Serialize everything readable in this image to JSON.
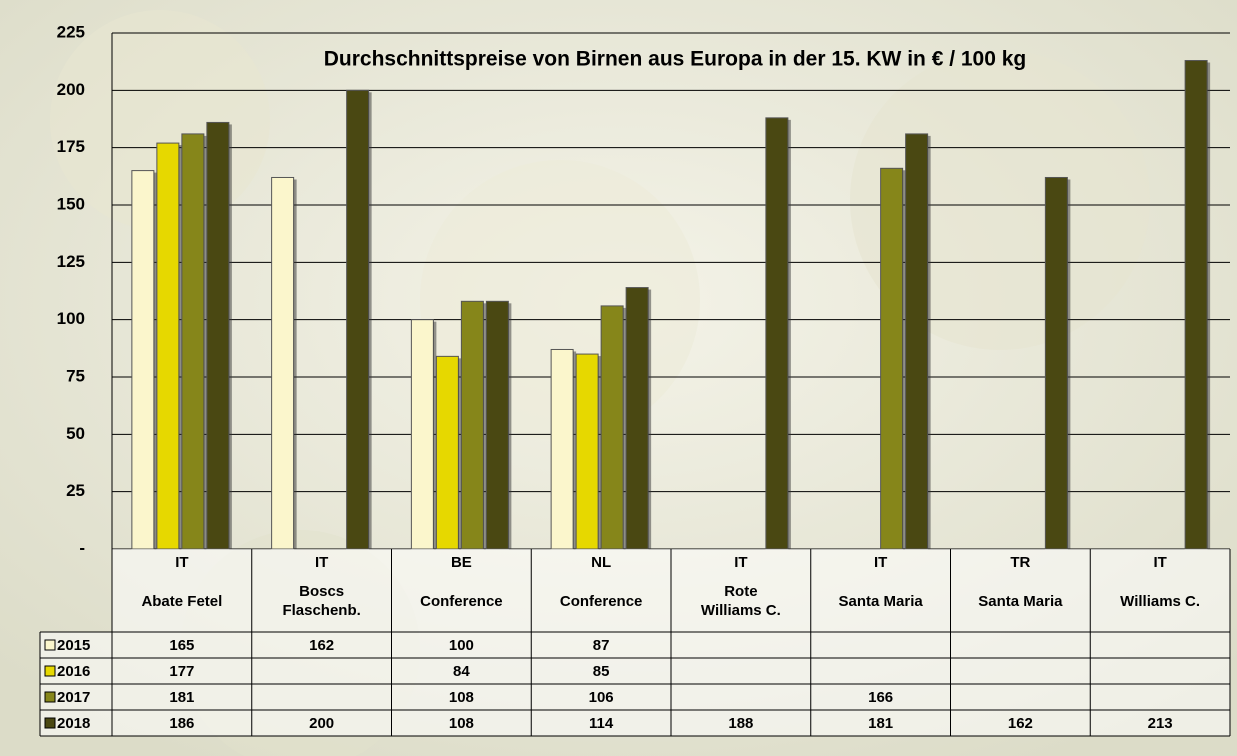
{
  "chart_data": {
    "type": "bar",
    "title": "Durchschnittspreise von Birnen aus Europa in der 15. KW in € / 100 kg",
    "categories": [
      [
        "IT",
        "Abate Fetel"
      ],
      [
        "IT",
        "Boscs\nFlaschenb."
      ],
      [
        "BE",
        "Conference"
      ],
      [
        "NL",
        "Conference"
      ],
      [
        "IT",
        "Rote\nWilliams C."
      ],
      [
        "IT",
        "Santa Maria"
      ],
      [
        "TR",
        "Santa Maria"
      ],
      [
        "IT",
        "Williams C."
      ]
    ],
    "series": [
      {
        "name": "2015",
        "color": "#fbf6cc",
        "values": [
          165,
          162,
          100,
          87,
          null,
          null,
          null,
          null
        ]
      },
      {
        "name": "2016",
        "color": "#e6d800",
        "values": [
          177,
          null,
          84,
          85,
          null,
          null,
          null,
          null
        ]
      },
      {
        "name": "2017",
        "color": "#86861a",
        "values": [
          181,
          null,
          108,
          106,
          null,
          166,
          null,
          null
        ]
      },
      {
        "name": "2018",
        "color": "#4a4812",
        "values": [
          186,
          200,
          108,
          114,
          188,
          181,
          162,
          213
        ]
      }
    ],
    "ylim": [
      0,
      225
    ],
    "yticks": [
      {
        "value": 0,
        "label": "-"
      },
      25,
      50,
      75,
      100,
      125,
      150,
      175,
      200,
      225
    ],
    "grid": true
  }
}
